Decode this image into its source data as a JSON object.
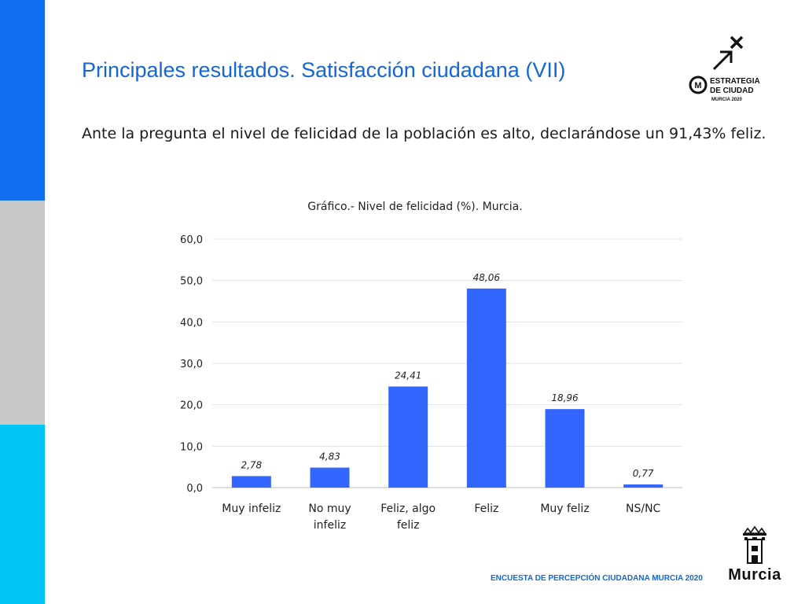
{
  "page": {
    "title": "Principales resultados. Satisfacción ciudadana (VII)",
    "lead": "Ante la pregunta el nivel de felicidad de la población es alto, declarándose un 91,43% feliz.",
    "footer": "ENCUESTA DE PERCEPCIÓN CIUDADANA MURCIA 2020",
    "colors": {
      "accent_blue": "#1466d6",
      "bar": "#3366ff",
      "side_blue": "#0f6ff0",
      "side_gray": "#c8c8c8",
      "side_cyan": "#00c6f5"
    }
  },
  "logos": {
    "estrategia": {
      "line1": "ESTRATEGIA",
      "line2": "DE CIUDAD",
      "line3": "MURCIA 2020",
      "icon": "arrow-cross-icon"
    },
    "murcia": {
      "word": "Murcia",
      "icon": "crown-castle-icon"
    }
  },
  "chart_data": {
    "type": "bar",
    "title": "Gráfico.- Nivel de felicidad (%). Murcia.",
    "categories": [
      [
        "Muy infeliz"
      ],
      [
        "No muy",
        "infeliz"
      ],
      [
        "Feliz, algo",
        "feliz"
      ],
      [
        "Feliz"
      ],
      [
        "Muy feliz"
      ],
      [
        "NS/NC"
      ]
    ],
    "values": [
      2.78,
      4.83,
      24.41,
      48.06,
      18.96,
      0.77
    ],
    "data_labels": [
      "2,78",
      "4,83",
      "24,41",
      "48,06",
      "18,96",
      "0,77"
    ],
    "yticks": [
      "0,0",
      "10,0",
      "20,0",
      "30,0",
      "40,0",
      "50,0",
      "60,0"
    ],
    "ylim": [
      0,
      60
    ],
    "grid": true,
    "xlabel": "",
    "ylabel": ""
  }
}
